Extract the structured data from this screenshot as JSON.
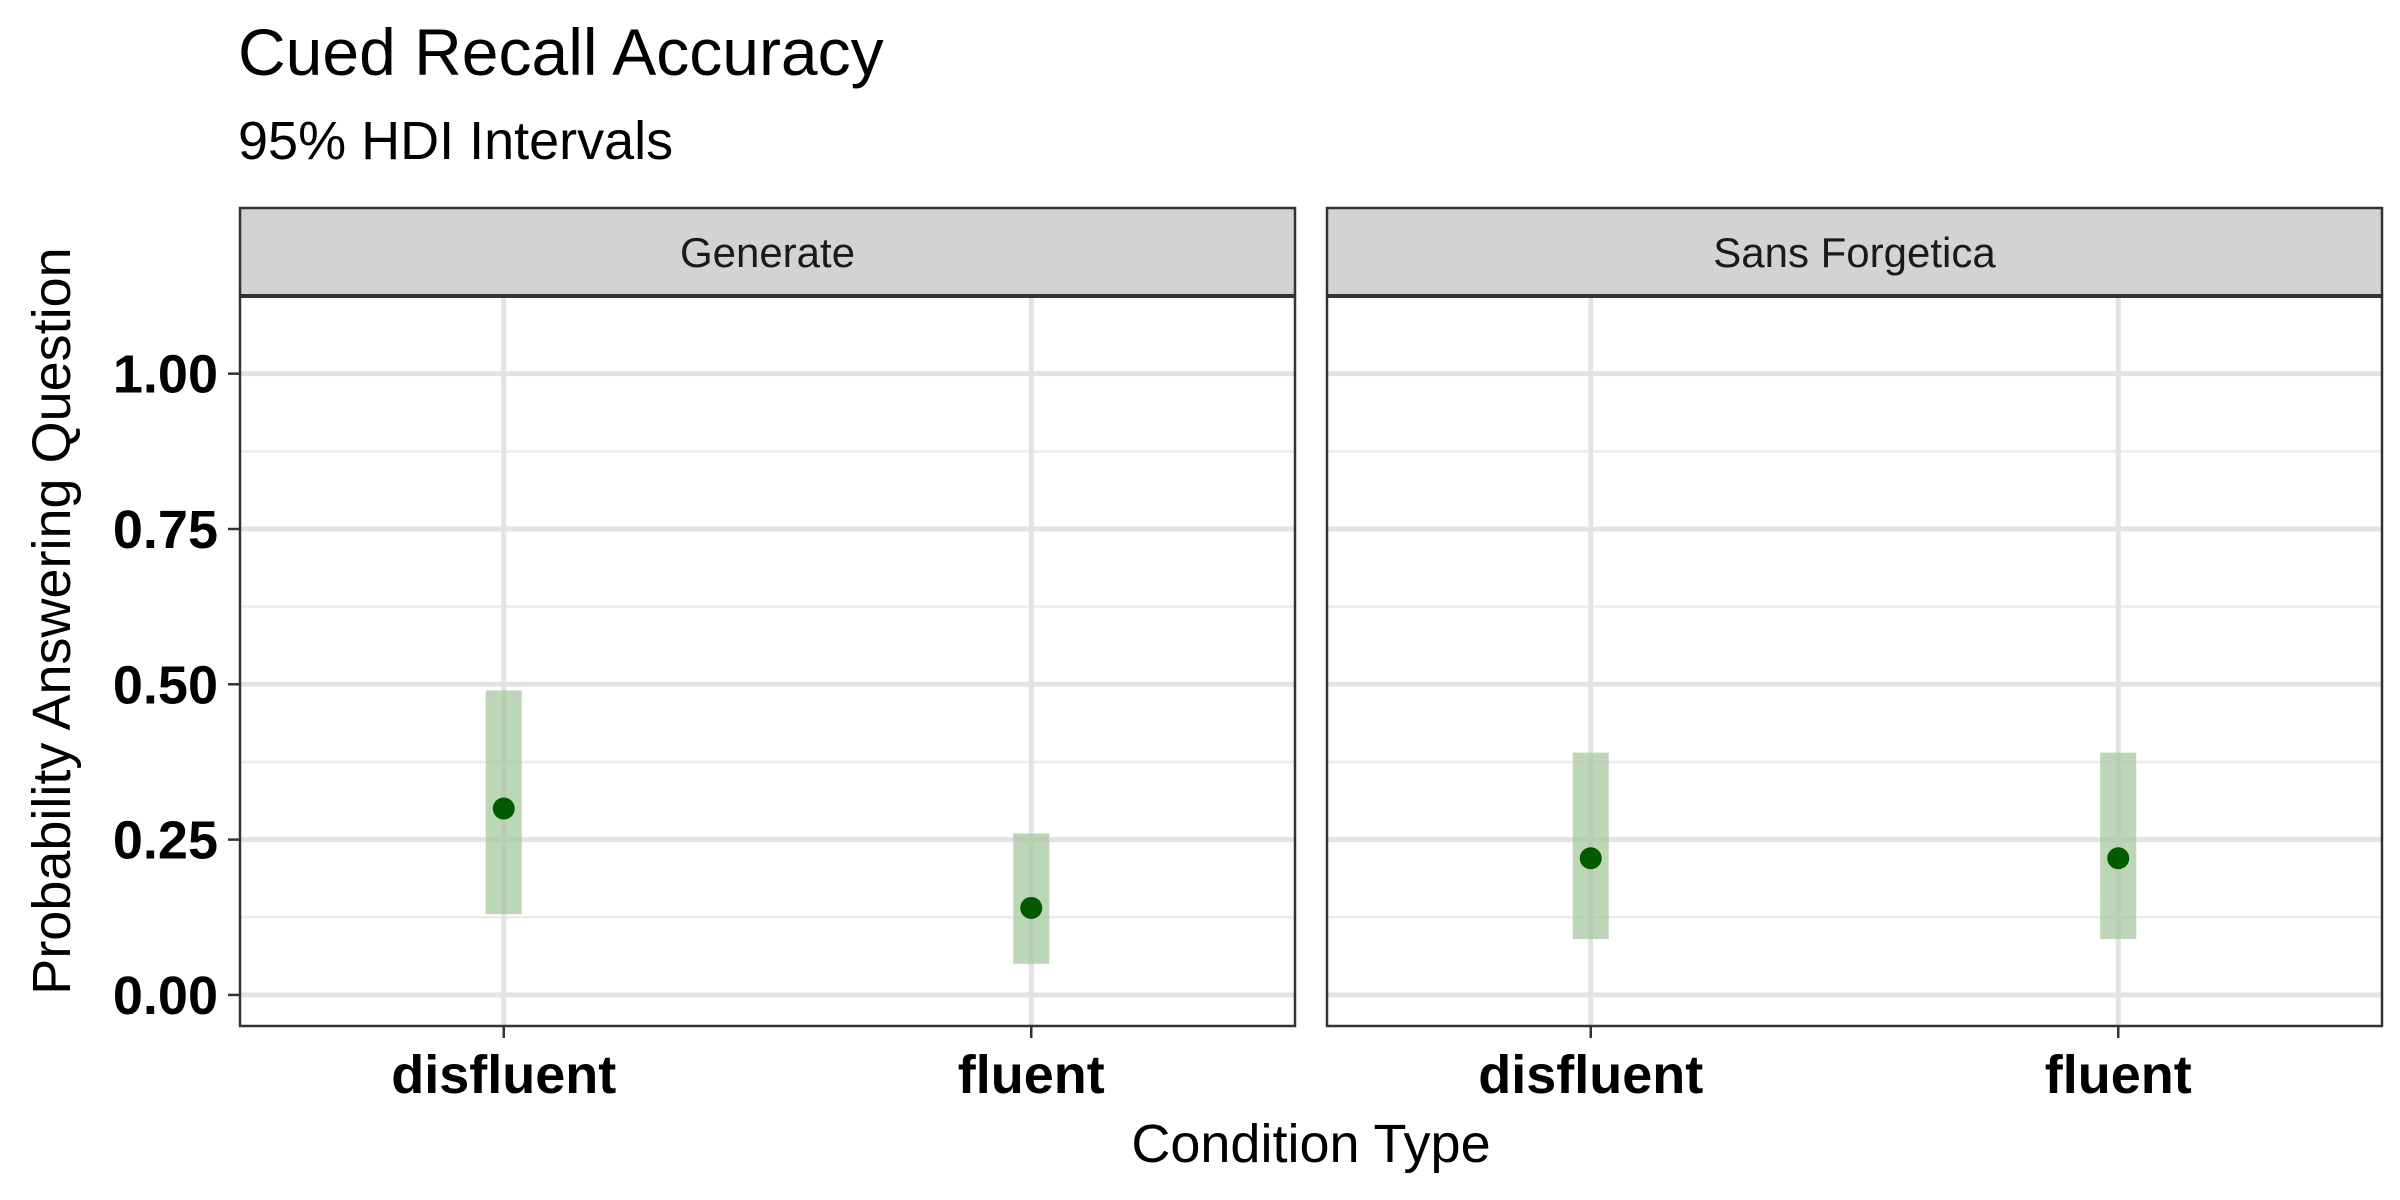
{
  "chart_data": {
    "type": "scatter",
    "title": "Cued Recall Accuracy",
    "subtitle": "95% HDI Intervals",
    "xlabel": "Condition Type",
    "ylabel": "Probability Answering Question",
    "ylim": [
      -0.05,
      1.125
    ],
    "yticks": [
      0,
      0.25,
      0.5,
      0.75,
      1.0
    ],
    "ytick_labels": [
      "0.00",
      "0.25",
      "0.50",
      "0.75",
      "1.00"
    ],
    "categories": [
      "disfluent",
      "fluent"
    ],
    "grid": true,
    "point_color": "#005a00",
    "interval_color": "#a8c8a0",
    "panels": [
      {
        "label": "Generate",
        "points": [
          {
            "category": "disfluent",
            "estimate": 0.3,
            "lower": 0.13,
            "upper": 0.49
          },
          {
            "category": "fluent",
            "estimate": 0.14,
            "lower": 0.05,
            "upper": 0.26
          }
        ]
      },
      {
        "label": "Sans Forgetica",
        "points": [
          {
            "category": "disfluent",
            "estimate": 0.22,
            "lower": 0.09,
            "upper": 0.39
          },
          {
            "category": "fluent",
            "estimate": 0.22,
            "lower": 0.09,
            "upper": 0.39
          }
        ]
      }
    ]
  }
}
